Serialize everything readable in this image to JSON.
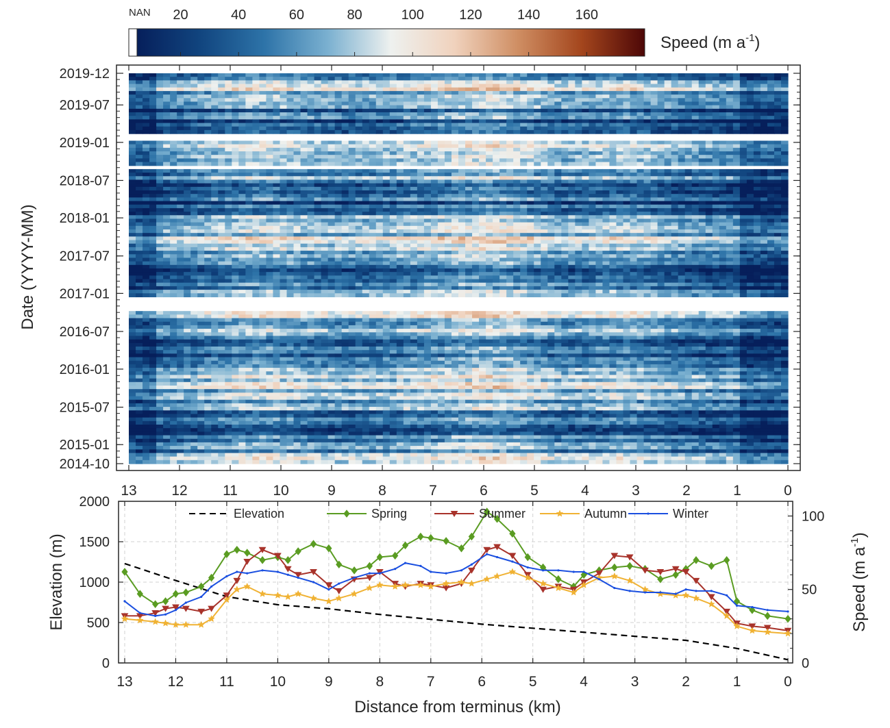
{
  "chart_data": [
    {
      "type": "heatmap",
      "ylabel": "Date (YYYY-MM)",
      "x_tick_labels": [
        "13",
        "12",
        "11",
        "10",
        "9",
        "8",
        "7",
        "6",
        "5",
        "4",
        "3",
        "2",
        "1",
        "0"
      ],
      "y_tick_labels": [
        "2014-10",
        "2015-01",
        "2015-07",
        "2016-01",
        "2016-07",
        "2017-01",
        "2017-07",
        "2018-01",
        "2018-07",
        "2019-01",
        "2019-07",
        "2019-12"
      ],
      "x_range": [
        13,
        0
      ],
      "y_range": [
        "2014-10",
        "2019-12"
      ],
      "nan_date_ranges": [
        [
          "2016-10-10",
          "2016-12-20"
        ],
        [
          "2019-01-08",
          "2019-02-10"
        ],
        [
          "2018-09-01",
          "2018-09-15"
        ]
      ],
      "colorbar": {
        "label_main": "Speed (m a",
        "label_sup": "-1",
        "label_end": ")",
        "nan_label": "NAN",
        "ticks": [
          "20",
          "40",
          "60",
          "80",
          "100",
          "120",
          "140",
          "160"
        ],
        "range": [
          5,
          180
        ],
        "colormap": [
          "#061f5b",
          "#11457f",
          "#2d73a8",
          "#7ab0d0",
          "#eef1ef",
          "#f0d2bd",
          "#cf8e63",
          "#a4461d",
          "#4d0707"
        ]
      },
      "grid": false
    },
    {
      "type": "line",
      "xlabel": "Distance from terminus (km)",
      "ylabel_left": "Elevation (m)",
      "ylabel_right_main": "Speed (m a",
      "ylabel_right_sup": "-1",
      "ylabel_right_end": ")",
      "xlim": [
        13,
        0
      ],
      "ylim_left": [
        0,
        2000
      ],
      "ylim_right": [
        0,
        110
      ],
      "x_tick_labels": [
        "13",
        "12",
        "11",
        "10",
        "9",
        "8",
        "7",
        "6",
        "5",
        "4",
        "3",
        "2",
        "1",
        "0"
      ],
      "y_left_tick_labels": [
        "0",
        "500",
        "1000",
        "1500",
        "2000"
      ],
      "y_right_tick_labels": [
        "0",
        "50",
        "100"
      ],
      "legend_position": "top",
      "grid": true,
      "series": [
        {
          "name": "Elevation",
          "axis": "left",
          "color": "#000000",
          "dash": "9 6",
          "marker": "none",
          "x": [
            13,
            12,
            11,
            10,
            9,
            8,
            7,
            6,
            5,
            4,
            3,
            2,
            1,
            0
          ],
          "y": [
            1230,
            1020,
            820,
            720,
            670,
            600,
            540,
            480,
            430,
            380,
            330,
            280,
            180,
            40
          ]
        },
        {
          "name": "Spring",
          "axis": "right",
          "color": "#5a9c22",
          "marker": "diamond",
          "x": [
            13,
            12.7,
            12.4,
            12.2,
            12,
            11.8,
            11.5,
            11.3,
            11,
            10.8,
            10.6,
            10.3,
            10,
            9.8,
            9.6,
            9.3,
            9,
            8.8,
            8.5,
            8.2,
            8,
            7.7,
            7.5,
            7.2,
            7,
            6.7,
            6.4,
            6.2,
            5.9,
            5.7,
            5.4,
            5.1,
            4.8,
            4.5,
            4.2,
            4,
            3.7,
            3.4,
            3.1,
            2.8,
            2.5,
            2.2,
            2,
            1.8,
            1.5,
            1.2,
            1,
            0.7,
            0.4,
            0
          ],
          "y": [
            62,
            47,
            40,
            42,
            47,
            48,
            52,
            58,
            74,
            77,
            75,
            70,
            72,
            70,
            76,
            81,
            78,
            67,
            63,
            66,
            72,
            73,
            80,
            86,
            85,
            83,
            78,
            86,
            103,
            98,
            88,
            72,
            65,
            57,
            52,
            60,
            63,
            65,
            66,
            64,
            57,
            60,
            64,
            70,
            66,
            70,
            42,
            36,
            32,
            30
          ]
        },
        {
          "name": "Summer",
          "axis": "right",
          "color": "#a8332b",
          "marker": "triangle-down",
          "x": [
            13,
            12.7,
            12.4,
            12.2,
            12,
            11.8,
            11.5,
            11.3,
            11,
            10.8,
            10.6,
            10.3,
            10,
            9.8,
            9.6,
            9.3,
            9,
            8.8,
            8.5,
            8.2,
            8,
            7.7,
            7.5,
            7.2,
            7,
            6.7,
            6.4,
            6.2,
            5.9,
            5.7,
            5.4,
            5.1,
            4.8,
            4.5,
            4.2,
            4,
            3.7,
            3.4,
            3.1,
            2.8,
            2.5,
            2.2,
            2,
            1.8,
            1.5,
            1.2,
            1,
            0.7,
            0.4,
            0
          ],
          "y": [
            32,
            32,
            34,
            37,
            38,
            37,
            35,
            37,
            46,
            56,
            69,
            77,
            73,
            64,
            60,
            62,
            53,
            49,
            57,
            58,
            62,
            54,
            52,
            54,
            53,
            51,
            54,
            63,
            77,
            79,
            73,
            60,
            50,
            52,
            50,
            55,
            61,
            73,
            72,
            63,
            62,
            64,
            62,
            56,
            45,
            35,
            27,
            25,
            24,
            22
          ]
        },
        {
          "name": "Autumn",
          "axis": "right",
          "color": "#f0b233",
          "marker": "star",
          "x": [
            13,
            12.7,
            12.4,
            12.2,
            12,
            11.8,
            11.5,
            11.3,
            11,
            10.8,
            10.6,
            10.3,
            10,
            9.8,
            9.6,
            9.3,
            9,
            8.8,
            8.5,
            8.2,
            8,
            7.7,
            7.5,
            7.2,
            7,
            6.7,
            6.4,
            6.2,
            5.9,
            5.7,
            5.4,
            5.1,
            4.8,
            4.5,
            4.2,
            4,
            3.7,
            3.4,
            3.1,
            2.8,
            2.5,
            2.2,
            2,
            1.8,
            1.5,
            1.2,
            1,
            0.7,
            0.4,
            0
          ],
          "y": [
            30,
            29,
            28,
            27,
            26,
            26,
            26,
            30,
            43,
            50,
            52,
            47,
            46,
            45,
            47,
            44,
            42,
            44,
            47,
            51,
            53,
            52,
            53,
            53,
            52,
            54,
            55,
            54,
            57,
            59,
            62,
            58,
            54,
            51,
            48,
            53,
            58,
            59,
            56,
            50,
            47,
            46,
            46,
            44,
            40,
            32,
            25,
            22,
            21,
            20
          ]
        },
        {
          "name": "Winter",
          "axis": "right",
          "color": "#1a4fe0",
          "marker": "point",
          "x": [
            13,
            12.7,
            12.4,
            12.2,
            12,
            11.8,
            11.5,
            11.3,
            11,
            10.8,
            10.6,
            10.3,
            10,
            9.8,
            9.6,
            9.3,
            9,
            8.8,
            8.5,
            8.2,
            8,
            7.7,
            7.5,
            7.2,
            7,
            6.7,
            6.4,
            6.2,
            5.9,
            5.7,
            5.4,
            5.1,
            4.8,
            4.5,
            4.2,
            4,
            3.7,
            3.4,
            3.1,
            2.8,
            2.5,
            2.2,
            2,
            1.8,
            1.5,
            1.2,
            1,
            0.7,
            0.4,
            0
          ],
          "y": [
            42,
            34,
            32,
            33,
            36,
            41,
            45,
            52,
            59,
            62,
            61,
            63,
            62,
            60,
            58,
            55,
            50,
            54,
            58,
            61,
            61,
            64,
            68,
            66,
            62,
            61,
            63,
            67,
            74,
            72,
            69,
            65,
            63,
            63,
            62,
            62,
            57,
            51,
            49,
            48,
            48,
            47,
            50,
            49,
            49,
            46,
            39,
            38,
            36,
            35
          ]
        }
      ]
    }
  ]
}
